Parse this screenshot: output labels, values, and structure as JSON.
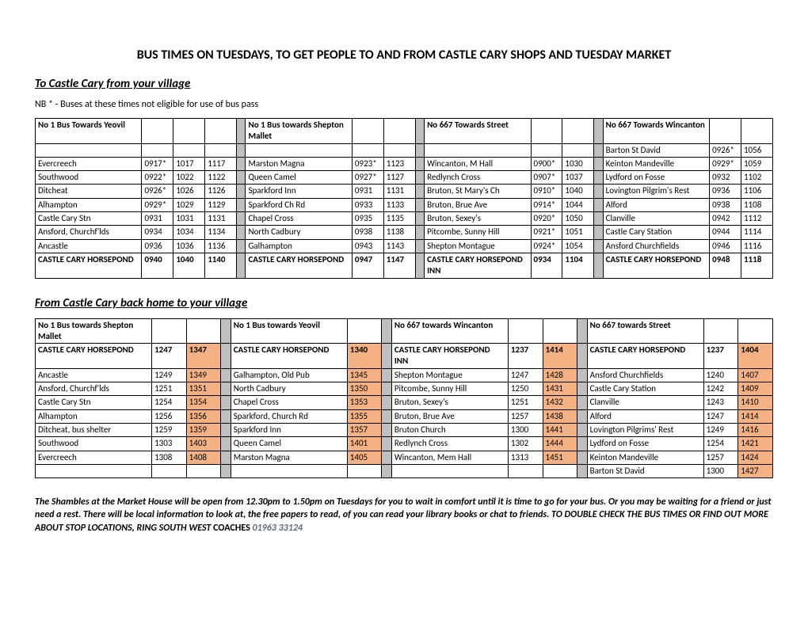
{
  "title": "BUS TIMES ON TUESDAYS, TO GET PEOPLE TO AND FROM CASTLE CARY SHOPS AND TUESDAY MARKET",
  "section1_title": "To Castle Cary from your village",
  "nb_note": "NB * - Buses at these times not eligible for use of bus pass",
  "section2_title": "From Castle Cary back home to your village",
  "colors": {
    "highlight": "#f4b183",
    "gap": "#bfbfbf",
    "border": "#000000"
  },
  "table1": {
    "blocks": [
      {
        "header": "No 1 Bus Towards Yeovil",
        "time_cols": 3
      },
      {
        "header": "No 1 Bus towards Shepton Mallet",
        "time_cols": 2
      },
      {
        "header": "No 667 Towards Street",
        "time_cols": 2
      },
      {
        "header": "No 667 Towards Wincanton",
        "time_cols": 2
      }
    ],
    "rows": [
      [
        {
          "stop": "",
          "t": [
            "",
            "",
            ""
          ]
        },
        {
          "stop": "",
          "t": [
            "",
            ""
          ]
        },
        {
          "stop": "",
          "t": [
            "",
            ""
          ]
        },
        {
          "stop": "Barton St David",
          "t": [
            "0926*",
            "1056"
          ]
        }
      ],
      [
        {
          "stop": "Evercreech",
          "t": [
            "0917*",
            "1017",
            "1117"
          ]
        },
        {
          "stop": "Marston Magna",
          "t": [
            "0923*",
            "1123"
          ]
        },
        {
          "stop": "Wincanton, M Hall",
          "t": [
            "0900*",
            "1030"
          ]
        },
        {
          "stop": "Keinton Mandeville",
          "t": [
            "0929*",
            "1059"
          ]
        }
      ],
      [
        {
          "stop": "Southwood",
          "t": [
            "0922*",
            "1022",
            "1122"
          ]
        },
        {
          "stop": "Queen Camel",
          "t": [
            "0927*",
            "1127"
          ]
        },
        {
          "stop": "Redlynch Cross",
          "t": [
            "0907*",
            "1037"
          ]
        },
        {
          "stop": "Lydford on Fosse",
          "t": [
            "0932",
            "1102"
          ]
        }
      ],
      [
        {
          "stop": "Ditcheat",
          "t": [
            "0926*",
            "1026",
            "1126"
          ]
        },
        {
          "stop": "Sparkford Inn",
          "t": [
            "0931",
            "1131"
          ]
        },
        {
          "stop": "Bruton, St Mary's Ch",
          "t": [
            "0910*",
            "1040"
          ]
        },
        {
          "stop": "Lovington Pilgrim's Rest",
          "t": [
            "0936",
            "1106"
          ]
        }
      ],
      [
        {
          "stop": "Alhampton",
          "t": [
            "0929*",
            "1029",
            "1129"
          ]
        },
        {
          "stop": "Sparkford Ch Rd",
          "t": [
            "0933",
            "1133"
          ]
        },
        {
          "stop": "Bruton, Brue Ave",
          "t": [
            "0914*",
            "1044"
          ]
        },
        {
          "stop": "Alford",
          "t": [
            "0938",
            "1108"
          ]
        }
      ],
      [
        {
          "stop": "Castle Cary  Stn",
          "t": [
            "0931",
            "1031",
            "1131"
          ]
        },
        {
          "stop": "Chapel Cross",
          "t": [
            "0935",
            "1135"
          ]
        },
        {
          "stop": "Bruton, Sexey's",
          "t": [
            "0920*",
            "1050"
          ]
        },
        {
          "stop": "Clanville",
          "t": [
            "0942",
            "1112"
          ]
        }
      ],
      [
        {
          "stop": "Ansford, Churchf'lds",
          "t": [
            "0934",
            "1034",
            "1134"
          ]
        },
        {
          "stop": "North Cadbury",
          "t": [
            "0938",
            "1138"
          ]
        },
        {
          "stop": "Pitcombe, Sunny Hill",
          "t": [
            "0921*",
            "1051"
          ]
        },
        {
          "stop": "Castle Cary Station",
          "t": [
            "0944",
            "1114"
          ]
        }
      ],
      [
        {
          "stop": "Ancastle",
          "t": [
            "0936",
            "1036",
            "1136"
          ]
        },
        {
          "stop": "Galhampton",
          "t": [
            "0943",
            "1143"
          ]
        },
        {
          "stop": "Shepton Montague",
          "t": [
            "0924*",
            "1054"
          ]
        },
        {
          "stop": "Ansford Churchfields",
          "t": [
            "0946",
            "1116"
          ]
        }
      ],
      [
        {
          "stop": "CASTLE CARY HORSEPOND",
          "t": [
            "0940",
            "1040",
            "1140"
          ],
          "bold": true
        },
        {
          "stop": "CASTLE CARY HORSEPOND",
          "t": [
            "0947",
            "1147"
          ],
          "bold": true
        },
        {
          "stop": "CASTLE CARY HORSEPOND INN",
          "t": [
            "0934",
            "1104"
          ],
          "bold": true
        },
        {
          "stop": "CASTLE CARY HORSEPOND",
          "t": [
            "0948",
            "1118"
          ],
          "bold": true
        }
      ]
    ]
  },
  "table2": {
    "blocks": [
      {
        "header": "No 1 Bus towards Shepton Mallet",
        "time_cols": 2
      },
      {
        "header": "No 1 Bus towards Yeovil",
        "time_cols": 1
      },
      {
        "header": "No 667 towards Wincanton",
        "time_cols": 2
      },
      {
        "header": "No 667 towards Street",
        "time_cols": 2
      }
    ],
    "rows": [
      [
        {
          "stop": "CASTLE CARY HORSEPOND",
          "t": [
            "1247",
            "1347"
          ],
          "bold": true,
          "hl": [
            1
          ]
        },
        {
          "stop": "CASTLE CARY HORSEPOND",
          "t": [
            "1340"
          ],
          "bold": true,
          "hl": [
            0
          ]
        },
        {
          "stop": "CASTLE CARY HORSEPOND INN",
          "t": [
            "1237",
            "1414"
          ],
          "bold": true,
          "hl": [
            1
          ]
        },
        {
          "stop": "CASTLE CARY HORSEPOND",
          "t": [
            "1237",
            "1404"
          ],
          "bold": true,
          "hl": [
            1
          ]
        }
      ],
      [
        {
          "stop": "Ancastle",
          "t": [
            "1249",
            "1349"
          ],
          "hl": [
            1
          ]
        },
        {
          "stop": "Galhampton, Old Pub",
          "t": [
            "1345"
          ],
          "hl": [
            0
          ]
        },
        {
          "stop": "Shepton Montague",
          "t": [
            "1247",
            "1428"
          ],
          "hl": [
            1
          ]
        },
        {
          "stop": "Ansford Churchfields",
          "t": [
            "1240",
            "1407"
          ],
          "hl": [
            1
          ]
        }
      ],
      [
        {
          "stop": "Ansford, Churchf'lds",
          "t": [
            "1251",
            "1351"
          ],
          "hl": [
            1
          ]
        },
        {
          "stop": "North Cadbury",
          "t": [
            "1350"
          ],
          "hl": [
            0
          ]
        },
        {
          "stop": "Pitcombe, Sunny Hill",
          "t": [
            "1250",
            "1431"
          ],
          "hl": [
            1
          ]
        },
        {
          "stop": "Castle Cary Station",
          "t": [
            "1242",
            "1409"
          ],
          "hl": [
            1
          ]
        }
      ],
      [
        {
          "stop": "Castle Cary Stn",
          "t": [
            "1254",
            "1354"
          ],
          "hl": [
            1
          ]
        },
        {
          "stop": "Chapel Cross",
          "t": [
            "1353"
          ],
          "hl": [
            0
          ]
        },
        {
          "stop": "Bruton, Sexey's",
          "t": [
            "1251",
            "1432"
          ],
          "hl": [
            1
          ]
        },
        {
          "stop": "Clanville",
          "t": [
            "1243",
            "1410"
          ],
          "hl": [
            1
          ]
        }
      ],
      [
        {
          "stop": "Alhampton",
          "t": [
            "1256",
            "1356"
          ],
          "hl": [
            1
          ]
        },
        {
          "stop": "Sparkford, Church Rd",
          "t": [
            "1355"
          ],
          "hl": [
            0
          ]
        },
        {
          "stop": "Bruton, Brue Ave",
          "t": [
            "1257",
            "1438"
          ],
          "hl": [
            1
          ]
        },
        {
          "stop": "Alford",
          "t": [
            "1247",
            "1414"
          ],
          "hl": [
            1
          ]
        }
      ],
      [
        {
          "stop": "Ditcheat, bus shelter",
          "t": [
            "1259",
            "1359"
          ],
          "hl": [
            1
          ]
        },
        {
          "stop": "Sparkford Inn",
          "t": [
            "1357"
          ],
          "hl": [
            0
          ]
        },
        {
          "stop": "Bruton Church",
          "t": [
            "1300",
            "1441"
          ],
          "hl": [
            1
          ]
        },
        {
          "stop": "Lovington Pilgrims' Rest",
          "t": [
            "1249",
            "1416"
          ],
          "hl": [
            1
          ]
        }
      ],
      [
        {
          "stop": "Southwood",
          "t": [
            "1303",
            "1403"
          ],
          "hl": [
            1
          ]
        },
        {
          "stop": "Queen Camel",
          "t": [
            "1401"
          ],
          "hl": [
            0
          ]
        },
        {
          "stop": "Redlynch Cross",
          "t": [
            "1302",
            "1444"
          ],
          "hl": [
            1
          ]
        },
        {
          "stop": "Lydford on Fosse",
          "t": [
            "1254",
            "1421"
          ],
          "hl": [
            1
          ]
        }
      ],
      [
        {
          "stop": "Evercreech",
          "t": [
            "1308",
            "1408"
          ],
          "hl": [
            1
          ]
        },
        {
          "stop": "Marston Magna",
          "t": [
            "1405"
          ],
          "hl": [
            0
          ]
        },
        {
          "stop": "Wincanton, Mem Hall",
          "t": [
            "1313",
            "1451"
          ],
          "hl": [
            1
          ]
        },
        {
          "stop": "Keinton Mandeville",
          "t": [
            "1257",
            "1424"
          ],
          "hl": [
            1
          ]
        }
      ],
      [
        {
          "stop": "",
          "t": [
            "",
            ""
          ]
        },
        {
          "stop": "",
          "t": [
            ""
          ]
        },
        {
          "stop": "",
          "t": [
            "",
            ""
          ]
        },
        {
          "stop": "Barton St David",
          "t": [
            "1300",
            "1427"
          ],
          "hl": [
            1
          ]
        }
      ]
    ]
  },
  "footer_text": "The Shambles at the Market House will be open from 12.30pm to 1.50pm on Tuesdays for you to wait in comfort until it is time to go for your bus.  Or you may be waiting for a friend or just need a rest. There will be local information to look at, the free papers to read, of you can read your library books or chat to friends.  TO DOUBLE CHECK THE BUS TIMES OR FIND OUT MORE ABOUT STOP LOCATIONS, RING SOUTH WEST",
  "footer_coaches": " COACHES ",
  "footer_phone": "01963 33124"
}
